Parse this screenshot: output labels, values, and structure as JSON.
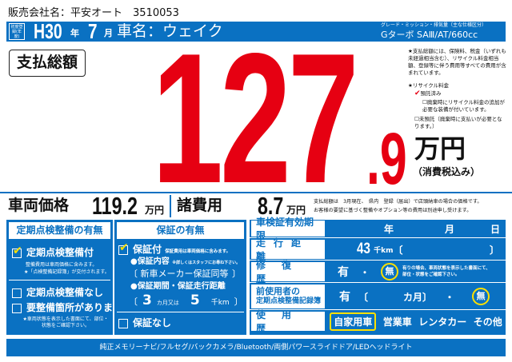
{
  "dealer": {
    "label": "販売会社名：平安オート",
    "code": "3510053"
  },
  "header": {
    "first_reg_label": "初度登録(年度)",
    "era_year": "H30",
    "year_unit": "年",
    "month": "7",
    "month_unit": "月",
    "car_name": "車名：ウェイク",
    "grade_caption": "グレード・ミッション・排気量（主な仕様区分）",
    "grade": "Gターボ SAⅢ/AT/660cc"
  },
  "total": {
    "label": "支払総額",
    "integer": "127",
    "decimal": ".9",
    "unit": "万円",
    "tax_note": "（消費税込み）"
  },
  "notes": {
    "total_note": "★支払総額には、保険料、税金（いずれも未経過相当含む）、リサイクル料金相当額、登録等に伴う費用等すべての費用が含まれています。",
    "recycle_title": "★リサイクル料金",
    "recycle_options": [
      "預託済み",
      "廃棄時にリサイクル料金の追加が必要な装備が付いています。",
      "未預託（廃棄時に支払いが必要となります。）"
    ],
    "recycle_checked": [
      true,
      false,
      false
    ]
  },
  "prices": {
    "vehicle_label": "車両価格",
    "vehicle_value": "119.2",
    "vehicle_unit": "万円",
    "fees_label": "諸費用",
    "fees_value": "8.7",
    "fees_unit": "万円",
    "note1": "支払総額は　3月現在、　県内　登録（届出）で店頭納車の場合の価格です。",
    "note2": "お客様の要望に基づく整備やオプション等の費用は別途申し受けます。"
  },
  "inspection": {
    "title": "定期点検整備の有無",
    "with": "定期点検整備付",
    "with_note1": "整備費用は車両価格に含みます。",
    "with_note2": "★「点検整備記録簿」が交付されます。",
    "without": "定期点検整備なし",
    "needs": "要整備箇所があります",
    "needs_note": "★車両状態を表示した書面にて、部位・状態をご確認下さい。",
    "checked": "with"
  },
  "warranty": {
    "title": "保証の有無",
    "with": "保証付",
    "with_note": "保証費用は車両価格に含みます。",
    "content_label": "●保証内容",
    "content_note": "※詳しくはスタッフにお尋ね下さい。",
    "content": "新車メーカー保証同等",
    "period_label": "●保証期間・保証走行距離",
    "months": "3",
    "months_unit": "カ月又は",
    "distance": "5",
    "distance_unit": "千km",
    "without": "保証なし",
    "checked": "with"
  },
  "details": {
    "inspection_expiry": {
      "label": "車検証有効期限",
      "year": "年",
      "month": "月",
      "day": "日"
    },
    "mileage": {
      "label": "走行距離",
      "value": "43",
      "unit": "千km"
    },
    "repair": {
      "label": "修復歴",
      "yes": "有",
      "no": "無",
      "selected": "無",
      "note": "有りの場合、車両状態を表示した書面にて、部位・状態をご確認下さい。"
    },
    "records": {
      "label1": "前使用者の",
      "label2": "定期点検整備記録簿",
      "yes": "有",
      "months": "カ月",
      "no": "無",
      "selected": "無"
    },
    "usage": {
      "label": "使用歴",
      "options": [
        "自家用車",
        "営業車",
        "レンタカー",
        "その他"
      ],
      "selected": "自家用車"
    }
  },
  "equipment": "純正メモリーナビ/フルセグ/バックカメラ/Bluetooth/両側パワースライドドア/LEDヘッドライト",
  "colors": {
    "blue": "#0a71c2",
    "red": "#e60012",
    "highlight": "#ffe000"
  }
}
